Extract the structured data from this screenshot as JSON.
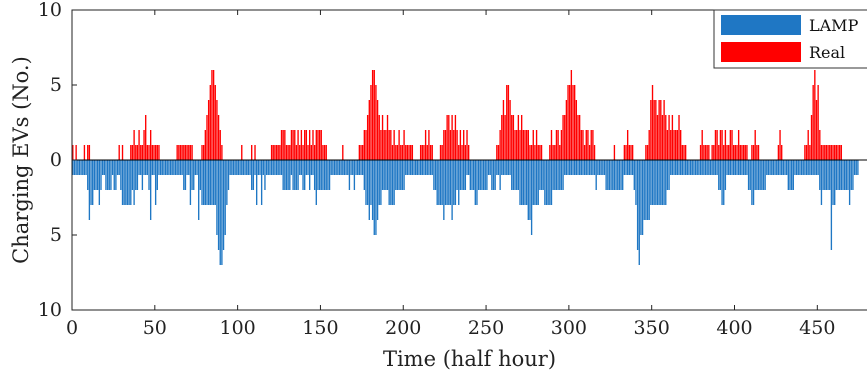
{
  "chart_data": {
    "type": "bar",
    "title": "",
    "xlabel": "Time (half hour)",
    "ylabel": "Charging EVs (No.)",
    "xlim": [
      0,
      480
    ],
    "ylim": [
      -10,
      10
    ],
    "x_ticks": [
      0,
      50,
      100,
      150,
      200,
      250,
      300,
      350,
      400,
      450
    ],
    "y_ticks": [
      -10,
      -5,
      0,
      5,
      10
    ],
    "y_tick_labels": [
      "10",
      "5",
      "0",
      "5",
      "10"
    ],
    "legend": {
      "position": "top-right",
      "entries": [
        "LAMP",
        "Real"
      ]
    },
    "grid": false,
    "series": [
      {
        "name": "Real",
        "direction": "up",
        "color": "#ff0000",
        "values": [
          1,
          0,
          1,
          0,
          0,
          0,
          0,
          1,
          0,
          1,
          1,
          0,
          0,
          0,
          0,
          0,
          0,
          0,
          0,
          0,
          0,
          0,
          0,
          0,
          0,
          0,
          0,
          0,
          1,
          0,
          1,
          0,
          0,
          0,
          0,
          1,
          1,
          2,
          1,
          1,
          2,
          1,
          1,
          2,
          3,
          1,
          1,
          2,
          1,
          1,
          1,
          1,
          1,
          0,
          0,
          0,
          0,
          0,
          0,
          0,
          0,
          0,
          0,
          1,
          1,
          1,
          1,
          1,
          1,
          1,
          1,
          1,
          1,
          0,
          0,
          0,
          0,
          0,
          1,
          1,
          2,
          3,
          4,
          5,
          6,
          6,
          5,
          4,
          3,
          2,
          1,
          0,
          0,
          0,
          0,
          0,
          0,
          0,
          0,
          0,
          0,
          0,
          1,
          0,
          0,
          0,
          0,
          0,
          1,
          0,
          1,
          0,
          0,
          0,
          0,
          0,
          0,
          0,
          0,
          0,
          1,
          1,
          1,
          1,
          1,
          1,
          2,
          2,
          2,
          1,
          1,
          1,
          2,
          2,
          2,
          1,
          2,
          1,
          2,
          1,
          2,
          2,
          1,
          2,
          1,
          2,
          1,
          2,
          2,
          2,
          2,
          1,
          1,
          1,
          0,
          0,
          0,
          0,
          0,
          0,
          0,
          0,
          0,
          1,
          0,
          0,
          0,
          0,
          0,
          0,
          0,
          0,
          0,
          1,
          1,
          1,
          2,
          2,
          3,
          4,
          5,
          6,
          6,
          5,
          4,
          3,
          2,
          3,
          2,
          2,
          3,
          2,
          2,
          1,
          2,
          1,
          1,
          2,
          1,
          1,
          2,
          1,
          1,
          1,
          1,
          1,
          0,
          0,
          0,
          0,
          1,
          1,
          1,
          2,
          1,
          2,
          1,
          1,
          0,
          0,
          0,
          0,
          1,
          1,
          2,
          2,
          3,
          3,
          2,
          3,
          2,
          3,
          2,
          1,
          2,
          1,
          2,
          1,
          2,
          1,
          0,
          0,
          0,
          0,
          0,
          0,
          0,
          0,
          0,
          0,
          0,
          0,
          0,
          0,
          0,
          0,
          1,
          1,
          2,
          3,
          4,
          3,
          5,
          5,
          4,
          3,
          3,
          2,
          2,
          3,
          2,
          3,
          2,
          2,
          2,
          2,
          1,
          1,
          2,
          1,
          2,
          1,
          1,
          1,
          0,
          0,
          0,
          0,
          1,
          2,
          1,
          1,
          2,
          2,
          1,
          2,
          3,
          3,
          4,
          5,
          5,
          6,
          5,
          5,
          4,
          3,
          3,
          2,
          2,
          1,
          2,
          2,
          1,
          2,
          2,
          1,
          0,
          0,
          0,
          0,
          0,
          0,
          0,
          0,
          0,
          0,
          0,
          1,
          0,
          0,
          0,
          0,
          0,
          1,
          1,
          2,
          1,
          1,
          1,
          0,
          0,
          0,
          0,
          0,
          0,
          0,
          1,
          1,
          2,
          4,
          5,
          4,
          4,
          3,
          4,
          4,
          3,
          4,
          3,
          2,
          3,
          2,
          3,
          2,
          2,
          2,
          3,
          2,
          1,
          1,
          1,
          0,
          0,
          0,
          0,
          0,
          0,
          0,
          0,
          1,
          2,
          1,
          1,
          1,
          1,
          0,
          1,
          1,
          2,
          2,
          1,
          2,
          2,
          1,
          2,
          1,
          1,
          2,
          2,
          1,
          1,
          1,
          2,
          1,
          1,
          1,
          1,
          1,
          0,
          0,
          1,
          1,
          2,
          1,
          1,
          0,
          0,
          0,
          0,
          0,
          0,
          0,
          0,
          0,
          0,
          0,
          1,
          2,
          1,
          0,
          0,
          0,
          0,
          0,
          0,
          0,
          0,
          0,
          0,
          0,
          0,
          0,
          1,
          1,
          2,
          1,
          3,
          5,
          6,
          4,
          5,
          2,
          1,
          1,
          1,
          1,
          1,
          1,
          1,
          1,
          1,
          1,
          1,
          1,
          1
        ]
      },
      {
        "name": "LAMP",
        "direction": "down",
        "color": "#1f77c4",
        "values": [
          1,
          1,
          1,
          1,
          1,
          1,
          1,
          1,
          1,
          2,
          4,
          3,
          3,
          2,
          2,
          2,
          3,
          2,
          1,
          1,
          2,
          2,
          2,
          2,
          1,
          2,
          2,
          1,
          1,
          2,
          3,
          3,
          3,
          3,
          3,
          3,
          2,
          3,
          2,
          2,
          1,
          1,
          2,
          1,
          1,
          1,
          2,
          4,
          1,
          1,
          3,
          2,
          1,
          1,
          1,
          1,
          1,
          1,
          1,
          1,
          1,
          1,
          1,
          1,
          1,
          1,
          1,
          2,
          2,
          1,
          1,
          3,
          2,
          2,
          1,
          1,
          4,
          2,
          3,
          3,
          3,
          3,
          3,
          3,
          3,
          3,
          3,
          5,
          6,
          7,
          7,
          6,
          5,
          3,
          2,
          1,
          1,
          1,
          1,
          1,
          1,
          1,
          1,
          1,
          1,
          1,
          1,
          1,
          2,
          2,
          1,
          3,
          1,
          1,
          3,
          1,
          2,
          1,
          1,
          1,
          1,
          1,
          1,
          1,
          1,
          1,
          1,
          2,
          2,
          2,
          2,
          2,
          1,
          2,
          2,
          2,
          2,
          1,
          1,
          2,
          2,
          1,
          1,
          2,
          1,
          1,
          2,
          3,
          2,
          2,
          2,
          2,
          2,
          2,
          2,
          2,
          1,
          1,
          1,
          1,
          1,
          1,
          1,
          1,
          1,
          1,
          1,
          2,
          1,
          1,
          2,
          1,
          1,
          1,
          1,
          1,
          2,
          3,
          3,
          4,
          3,
          4,
          5,
          5,
          4,
          3,
          3,
          2,
          2,
          2,
          2,
          3,
          3,
          3,
          3,
          2,
          2,
          2,
          2,
          2,
          2,
          1,
          1,
          1,
          1,
          1,
          1,
          1,
          1,
          1,
          1,
          1,
          1,
          1,
          1,
          1,
          1,
          1,
          2,
          2,
          3,
          3,
          3,
          3,
          4,
          3,
          3,
          3,
          3,
          4,
          3,
          3,
          2,
          3,
          2,
          2,
          2,
          2,
          1,
          1,
          2,
          2,
          2,
          3,
          3,
          2,
          2,
          2,
          2,
          2,
          2,
          1,
          1,
          2,
          2,
          2,
          1,
          1,
          2,
          1,
          1,
          1,
          1,
          1,
          1,
          2,
          2,
          2,
          2,
          2,
          3,
          3,
          3,
          3,
          3,
          4,
          4,
          5,
          3,
          3,
          3,
          3,
          2,
          2,
          2,
          3,
          3,
          3,
          3,
          3,
          2,
          2,
          2,
          2,
          2,
          2,
          2,
          1,
          1,
          1,
          1,
          1,
          1,
          1,
          1,
          1,
          1,
          1,
          1,
          1,
          1,
          1,
          1,
          1,
          1,
          1,
          2,
          1,
          1,
          1,
          1,
          1,
          2,
          2,
          2,
          2,
          2,
          2,
          2,
          2,
          2,
          2,
          2,
          1,
          1,
          1,
          1,
          1,
          1,
          2,
          3,
          6,
          7,
          5,
          5,
          4,
          4,
          4,
          4,
          3,
          3,
          3,
          3,
          3,
          3,
          3,
          3,
          3,
          3,
          2,
          2,
          1,
          1,
          1,
          1,
          1,
          1,
          1,
          1,
          1,
          1,
          1,
          1,
          1,
          1,
          1,
          1,
          1,
          1,
          1,
          1,
          1,
          1,
          1,
          1,
          1,
          1,
          1,
          1,
          1,
          2,
          2,
          3,
          3,
          2,
          1,
          1,
          1,
          1,
          1,
          1,
          1,
          1,
          1,
          1,
          1,
          1,
          1,
          2,
          2,
          3,
          3,
          2,
          2,
          2,
          2,
          2,
          2,
          2,
          1,
          1,
          1,
          1,
          1,
          1,
          1,
          1,
          1,
          1,
          1,
          1,
          1,
          2,
          2,
          2,
          2,
          1,
          1,
          1,
          1,
          1,
          1,
          1,
          1,
          1,
          1,
          1,
          1,
          1,
          1,
          1,
          2,
          3,
          2,
          2,
          2,
          2,
          2,
          6,
          3,
          3,
          2,
          2,
          2,
          2,
          2,
          2,
          2,
          2,
          3,
          2,
          2,
          1,
          1,
          1
        ]
      }
    ]
  }
}
